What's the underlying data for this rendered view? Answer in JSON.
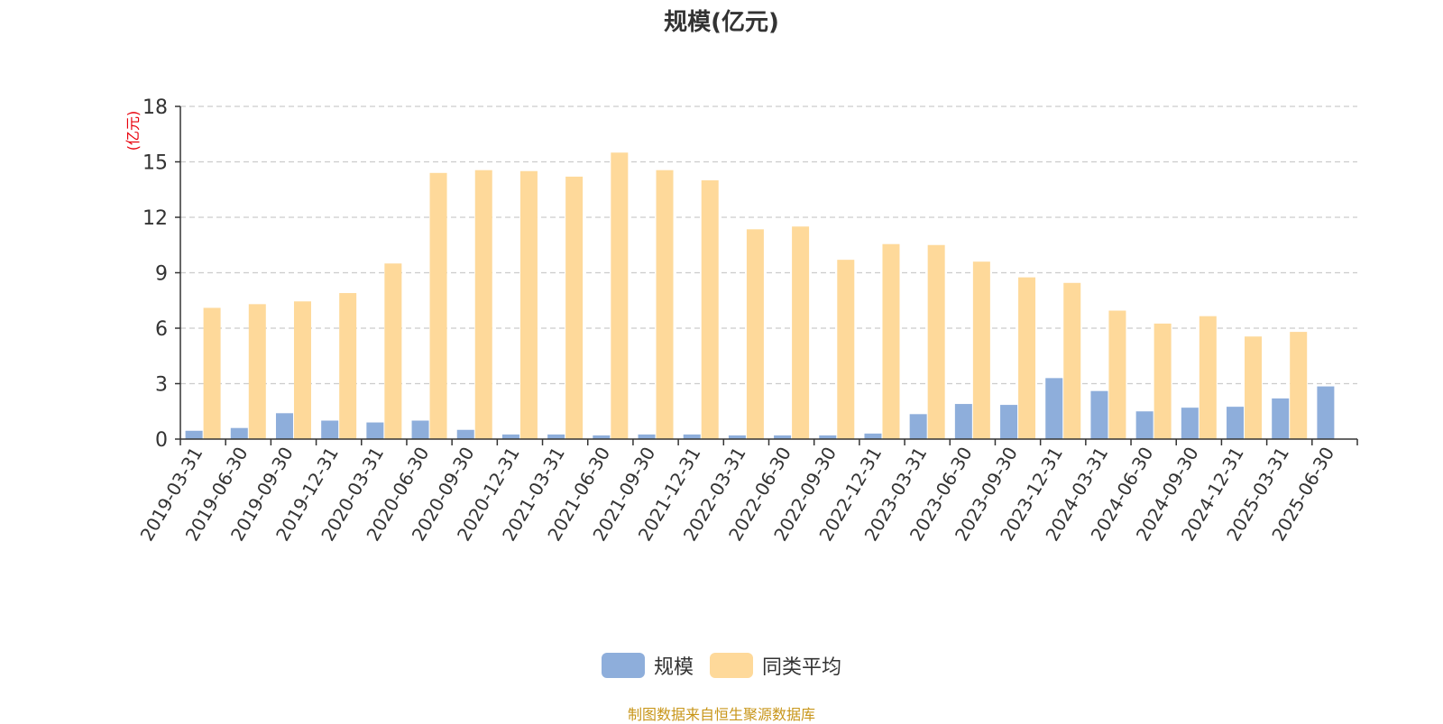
{
  "chart_data": {
    "type": "bar",
    "title": "规模(亿元)",
    "ylabel": "(亿元)",
    "xlabel": "",
    "ylim": [
      0,
      18
    ],
    "yticks": [
      0,
      3,
      6,
      9,
      12,
      15,
      18
    ],
    "grid": true,
    "legend_position": "bottom",
    "categories": [
      "2019-03-31",
      "2019-06-30",
      "2019-09-30",
      "2019-12-31",
      "2020-03-31",
      "2020-06-30",
      "2020-09-30",
      "2020-12-31",
      "2021-03-31",
      "2021-06-30",
      "2021-09-30",
      "2021-12-31",
      "2022-03-31",
      "2022-06-30",
      "2022-09-30",
      "2022-12-31",
      "2023-03-31",
      "2023-06-30",
      "2023-09-30",
      "2023-12-31",
      "2024-03-31",
      "2024-06-30",
      "2024-09-30",
      "2024-12-31",
      "2025-03-31",
      "2025-06-30"
    ],
    "series": [
      {
        "name": "规模",
        "color": "#8eaedb",
        "values": [
          0.45,
          0.6,
          1.4,
          1.0,
          0.9,
          1.0,
          0.5,
          0.25,
          0.25,
          0.2,
          0.25,
          0.25,
          0.2,
          0.2,
          0.2,
          0.3,
          1.35,
          1.9,
          1.85,
          3.3,
          2.6,
          1.5,
          1.7,
          1.75,
          2.2,
          2.85
        ]
      },
      {
        "name": "同类平均",
        "color": "#fed99a",
        "values": [
          7.1,
          7.3,
          7.45,
          7.9,
          9.5,
          14.4,
          14.55,
          14.5,
          14.2,
          15.5,
          14.55,
          14.0,
          11.35,
          11.5,
          9.7,
          10.55,
          10.5,
          9.6,
          8.75,
          8.45,
          6.95,
          6.25,
          6.65,
          5.55,
          5.8,
          null
        ]
      }
    ]
  },
  "source_note": "制图数据来自恒生聚源数据库"
}
